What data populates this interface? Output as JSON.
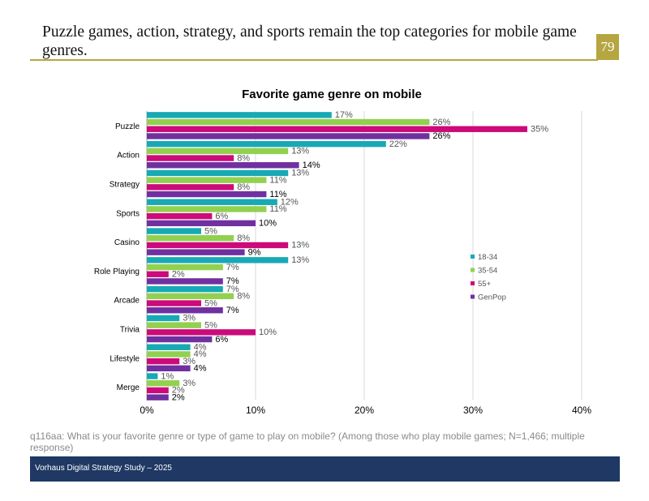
{
  "header": {
    "headline": "Puzzle games, action, strategy, and sports remain the top categories for mobile game genres.",
    "page_number": "79"
  },
  "footnote": "q116aa: What is your favorite genre or type of game to play on mobile? (Among those who play mobile games; N=1,466; multiple response)",
  "footer": {
    "text": "Vorhaus Digital Strategy Study – 2025"
  },
  "colors": {
    "accent": "#b5a642",
    "footer_bg": "#1f3864"
  },
  "chart_data": {
    "type": "bar",
    "orientation": "horizontal",
    "title": "Favorite game genre on mobile",
    "xlabel": "",
    "ylabel": "",
    "xlim": [
      0,
      40
    ],
    "xticks": [
      "0%",
      "10%",
      "20%",
      "30%",
      "40%"
    ],
    "grid": true,
    "legend_position": "right",
    "categories": [
      "Puzzle",
      "Action",
      "Strategy",
      "Sports",
      "Casino",
      "Role Playing",
      "Arcade",
      "Trivia",
      "Lifestyle",
      "Merge"
    ],
    "series": [
      {
        "name": "18-34",
        "color": "#17a9b5",
        "values": [
          17,
          22,
          13,
          12,
          5,
          13,
          7,
          3,
          4,
          1
        ]
      },
      {
        "name": "35-54",
        "color": "#92d050",
        "values": [
          26,
          13,
          11,
          11,
          8,
          7,
          8,
          5,
          4,
          3
        ]
      },
      {
        "name": "55+",
        "color": "#cc0a7a",
        "values": [
          35,
          8,
          8,
          6,
          13,
          2,
          5,
          10,
          3,
          2
        ]
      },
      {
        "name": "GenPop",
        "color": "#7030a0",
        "values": [
          26,
          14,
          11,
          10,
          9,
          7,
          7,
          6,
          4,
          2
        ]
      }
    ]
  }
}
